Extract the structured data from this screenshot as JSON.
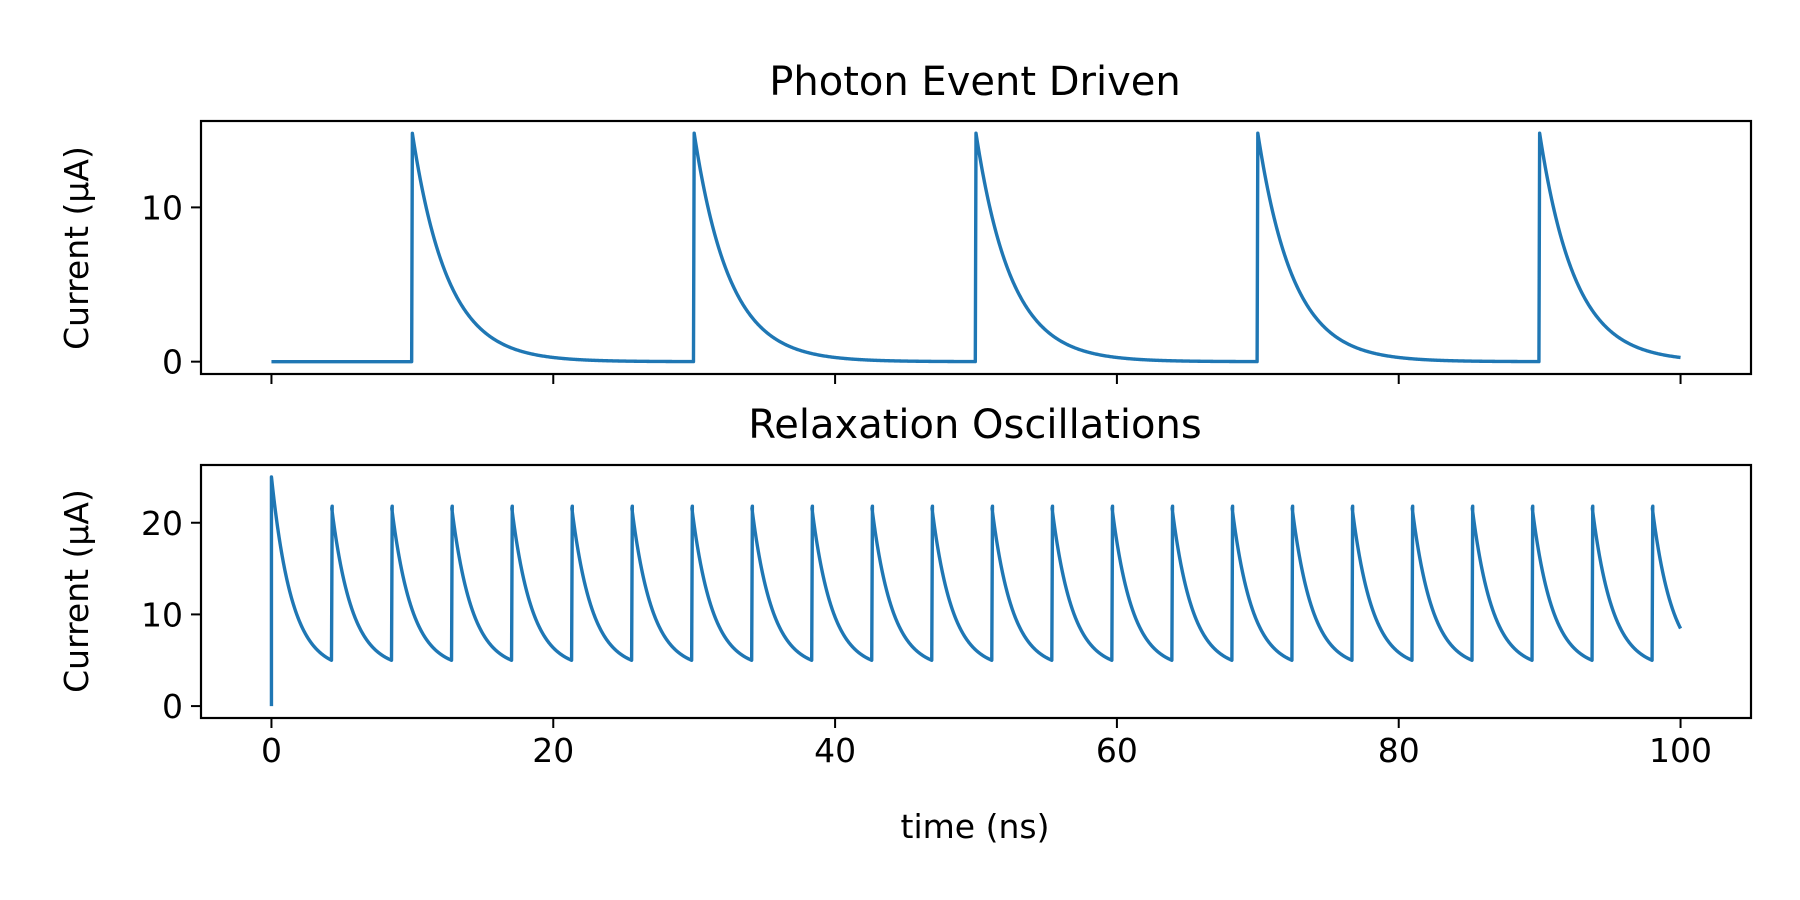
{
  "chart_data": [
    {
      "type": "line",
      "title": "Photon Event Driven",
      "ylabel": "Current (μA)",
      "xlabel": "",
      "xlim": [
        -5,
        105
      ],
      "ylim": [
        -0.8,
        15.6
      ],
      "xticks": [
        0,
        20,
        40,
        60,
        80,
        100
      ],
      "yticks": [
        0,
        10
      ],
      "show_x_tick_labels": false,
      "grid": false,
      "series_color": "#1f77b4",
      "pulse_params": {
        "pulse_times_ns": [
          10,
          30,
          50,
          70,
          90
        ],
        "peak_uA": 14.8,
        "baseline_uA": 0,
        "decay_tau_ns": 2.5,
        "x_end_ns": 100
      }
    },
    {
      "type": "line",
      "title": "Relaxation Oscillations",
      "ylabel": "Current (μA)",
      "xlabel": "time (ns)",
      "xlim": [
        -5,
        105
      ],
      "ylim": [
        -1.3,
        26.3
      ],
      "xticks": [
        0,
        20,
        40,
        60,
        80,
        100
      ],
      "yticks": [
        0,
        10,
        20
      ],
      "show_x_tick_labels": true,
      "grid": false,
      "series_color": "#1f77b4",
      "oscillation_params": {
        "first_peak_uA": 25,
        "peak_uA": 21.8,
        "reset_uA": 5,
        "period_ns": 4.26,
        "decay_tau_ns": 1.45,
        "x_end_ns": 100
      }
    }
  ]
}
